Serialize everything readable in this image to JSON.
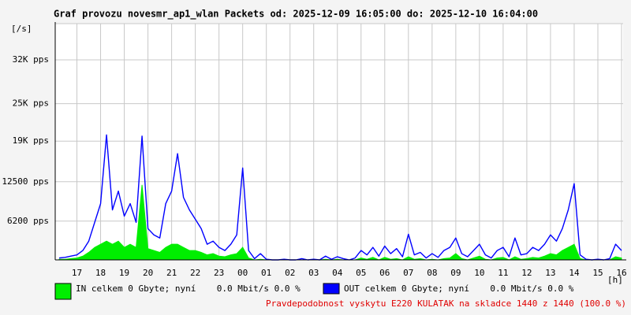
{
  "chart_data": {
    "type": "line",
    "title": "Graf provozu novesmr_ap1_wlan Packets od: 2025-12-09 16:05:00 do: 2025-12-10 16:04:00",
    "y_label": "[/s]",
    "x_label": "[h]",
    "note": "Pravdepodobnost vyskytu E220 KULATAK na skladce 1440 z 1440 (100.0 %)",
    "grid": true,
    "xlim": [
      16.0833,
      40.0667
    ],
    "xticks": [
      {
        "value": 17,
        "label": "17"
      },
      {
        "value": 18,
        "label": "18"
      },
      {
        "value": 19,
        "label": "19"
      },
      {
        "value": 20,
        "label": "20"
      },
      {
        "value": 21,
        "label": "21"
      },
      {
        "value": 22,
        "label": "22"
      },
      {
        "value": 23,
        "label": "23"
      },
      {
        "value": 24,
        "label": "00"
      },
      {
        "value": 25,
        "label": "01"
      },
      {
        "value": 26,
        "label": "02"
      },
      {
        "value": 27,
        "label": "03"
      },
      {
        "value": 28,
        "label": "04"
      },
      {
        "value": 29,
        "label": "05"
      },
      {
        "value": 30,
        "label": "06"
      },
      {
        "value": 31,
        "label": "07"
      },
      {
        "value": 32,
        "label": "08"
      },
      {
        "value": 33,
        "label": "09"
      },
      {
        "value": 34,
        "label": "10"
      },
      {
        "value": 35,
        "label": "11"
      },
      {
        "value": 36,
        "label": "12"
      },
      {
        "value": 37,
        "label": "13"
      },
      {
        "value": 38,
        "label": "14"
      },
      {
        "value": 39,
        "label": "15"
      },
      {
        "value": 40,
        "label": "16"
      }
    ],
    "ylim": [
      0,
      37800
    ],
    "yticks": [
      {
        "value": 6200,
        "label": "6200 pps"
      },
      {
        "value": 12500,
        "label": "12500 pps"
      },
      {
        "value": 19000,
        "label": "19K pps"
      },
      {
        "value": 25000,
        "label": "25K pps"
      },
      {
        "value": 32000,
        "label": "32K pps"
      }
    ],
    "x": [
      16.25,
      16.5,
      16.75,
      17,
      17.25,
      17.5,
      17.75,
      18,
      18.25,
      18.5,
      18.75,
      19,
      19.25,
      19.5,
      19.75,
      20,
      20.25,
      20.5,
      20.75,
      21,
      21.25,
      21.5,
      21.75,
      22,
      22.25,
      22.5,
      22.75,
      23,
      23.25,
      23.5,
      23.75,
      24,
      24.25,
      24.5,
      24.75,
      25,
      25.25,
      25.5,
      25.75,
      26,
      26.25,
      26.5,
      26.75,
      27,
      27.25,
      27.5,
      27.75,
      28,
      28.25,
      28.5,
      28.75,
      29,
      29.25,
      29.5,
      29.75,
      30,
      30.25,
      30.5,
      30.75,
      31,
      31.25,
      31.5,
      31.75,
      32,
      32.25,
      32.5,
      32.75,
      33,
      33.25,
      33.5,
      33.75,
      34,
      34.25,
      34.5,
      34.75,
      35,
      35.25,
      35.5,
      35.75,
      36,
      36.25,
      36.5,
      36.75,
      37,
      37.25,
      37.5,
      37.75,
      38,
      38.25,
      38.5,
      38.75,
      39,
      39.25,
      39.5,
      39.75,
      40
    ],
    "series": [
      {
        "name": "IN celkem 0 Gbyte; nyní    0.0 Mbit/s 0.0 %",
        "color": "#00ee00",
        "values": [
          100,
          100,
          200,
          300,
          600,
          1200,
          2000,
          2500,
          3000,
          2500,
          3000,
          2000,
          2500,
          2000,
          12000,
          1800,
          1500,
          1200,
          2000,
          2500,
          2500,
          2000,
          1500,
          1500,
          1200,
          800,
          1000,
          600,
          500,
          800,
          1000,
          2000,
          300,
          0,
          100,
          0,
          0,
          0,
          0,
          0,
          0,
          0,
          0,
          0,
          0,
          100,
          0,
          100,
          0,
          0,
          0,
          300,
          100,
          400,
          0,
          400,
          100,
          200,
          0,
          500,
          100,
          200,
          0,
          100,
          0,
          200,
          300,
          1000,
          200,
          0,
          300,
          600,
          100,
          0,
          300,
          400,
          0,
          500,
          100,
          200,
          400,
          300,
          600,
          1000,
          800,
          1500,
          2000,
          2500,
          200,
          0,
          0,
          0,
          0,
          0,
          500,
          300
        ]
      },
      {
        "name": "OUT celkem 0 Gbyte; nyní    0.0 Mbit/s 0.0 %",
        "color": "#0000ff",
        "values": [
          300,
          400,
          600,
          800,
          1500,
          3000,
          6000,
          9000,
          20000,
          8000,
          11000,
          7000,
          9000,
          6000,
          19800,
          5000,
          4000,
          3500,
          9000,
          11000,
          17000,
          10000,
          8000,
          6500,
          5000,
          2500,
          3000,
          2000,
          1500,
          2500,
          4000,
          14700,
          1500,
          200,
          1000,
          100,
          0,
          0,
          100,
          0,
          0,
          200,
          0,
          100,
          0,
          600,
          100,
          500,
          200,
          0,
          300,
          1500,
          800,
          2000,
          600,
          2200,
          1000,
          1800,
          500,
          4100,
          800,
          1200,
          300,
          1000,
          400,
          1500,
          2000,
          3500,
          1000,
          500,
          1500,
          2500,
          800,
          300,
          1500,
          2000,
          500,
          3500,
          800,
          1000,
          2000,
          1500,
          2500,
          4000,
          3000,
          5000,
          8000,
          12200,
          800,
          100,
          0,
          100,
          0,
          200,
          2500,
          1500
        ]
      }
    ]
  }
}
